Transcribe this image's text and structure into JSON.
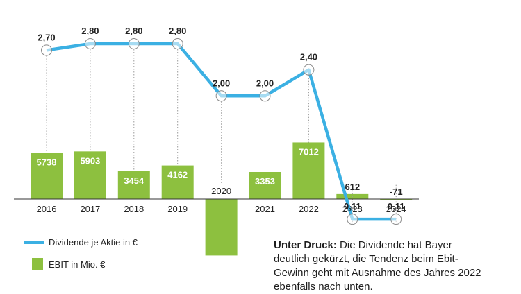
{
  "chart_data": {
    "type": "bar+line",
    "categories": [
      "2016",
      "2017",
      "2018",
      "2019",
      "2020",
      "2021",
      "2022",
      "2023",
      "2024"
    ],
    "series": [
      {
        "name": "EBIT in Mio. €",
        "type": "bar",
        "values": [
          5738,
          5903,
          3454,
          4162,
          -7000,
          3353,
          7012,
          612,
          -71
        ],
        "labels": [
          "5738",
          "5903",
          "3454",
          "4162",
          "",
          "3353",
          "7012",
          "612",
          "-71"
        ],
        "color": "#8dc03f"
      },
      {
        "name": "Dividende je Aktie in €",
        "type": "line",
        "values": [
          2.7,
          2.8,
          2.8,
          2.8,
          2.0,
          2.0,
          2.4,
          0.11,
          0.11
        ],
        "labels": [
          "2,70",
          "2,80",
          "2,80",
          "2,80",
          "2,00",
          "2,00",
          "2,40",
          "0,11",
          "0,11"
        ],
        "color": "#3bb0e3"
      }
    ],
    "legend_position": "bottom-left",
    "grid": false
  },
  "caption": {
    "bold": "Unter Druck:",
    "text": " Die Dividende hat Bayer deutlich gekürzt, die Tendenz beim Ebit-Gewinn geht mit Ausnahme des Jahres 2022 ebenfalls nach unten."
  }
}
